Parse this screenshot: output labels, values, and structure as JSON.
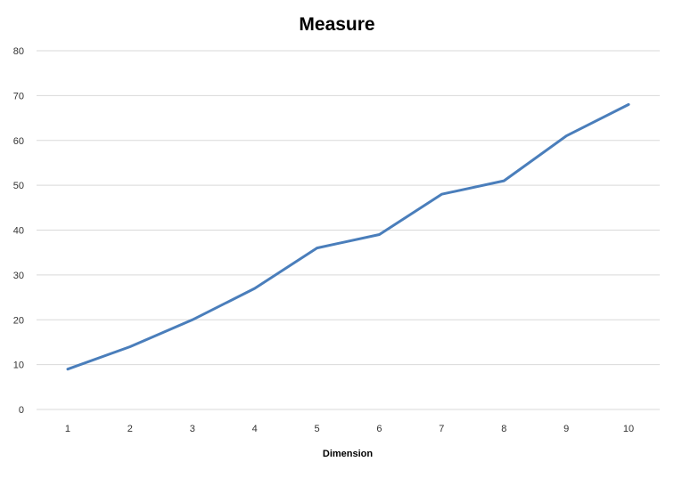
{
  "chart_data": {
    "type": "line",
    "title": "Measure",
    "xlabel": "Dimension",
    "ylabel": "",
    "categories": [
      "1",
      "2",
      "3",
      "4",
      "5",
      "6",
      "7",
      "8",
      "9",
      "10"
    ],
    "series": [
      {
        "values": [
          9,
          14,
          20,
          27,
          36,
          39,
          48,
          51,
          61,
          68
        ],
        "color": "#4a7ebb"
      }
    ],
    "ylim": [
      0,
      80
    ],
    "yticks": [
      "0",
      "10",
      "20",
      "30",
      "40",
      "50",
      "60",
      "70",
      "80"
    ],
    "grid": true,
    "legend": "none"
  }
}
